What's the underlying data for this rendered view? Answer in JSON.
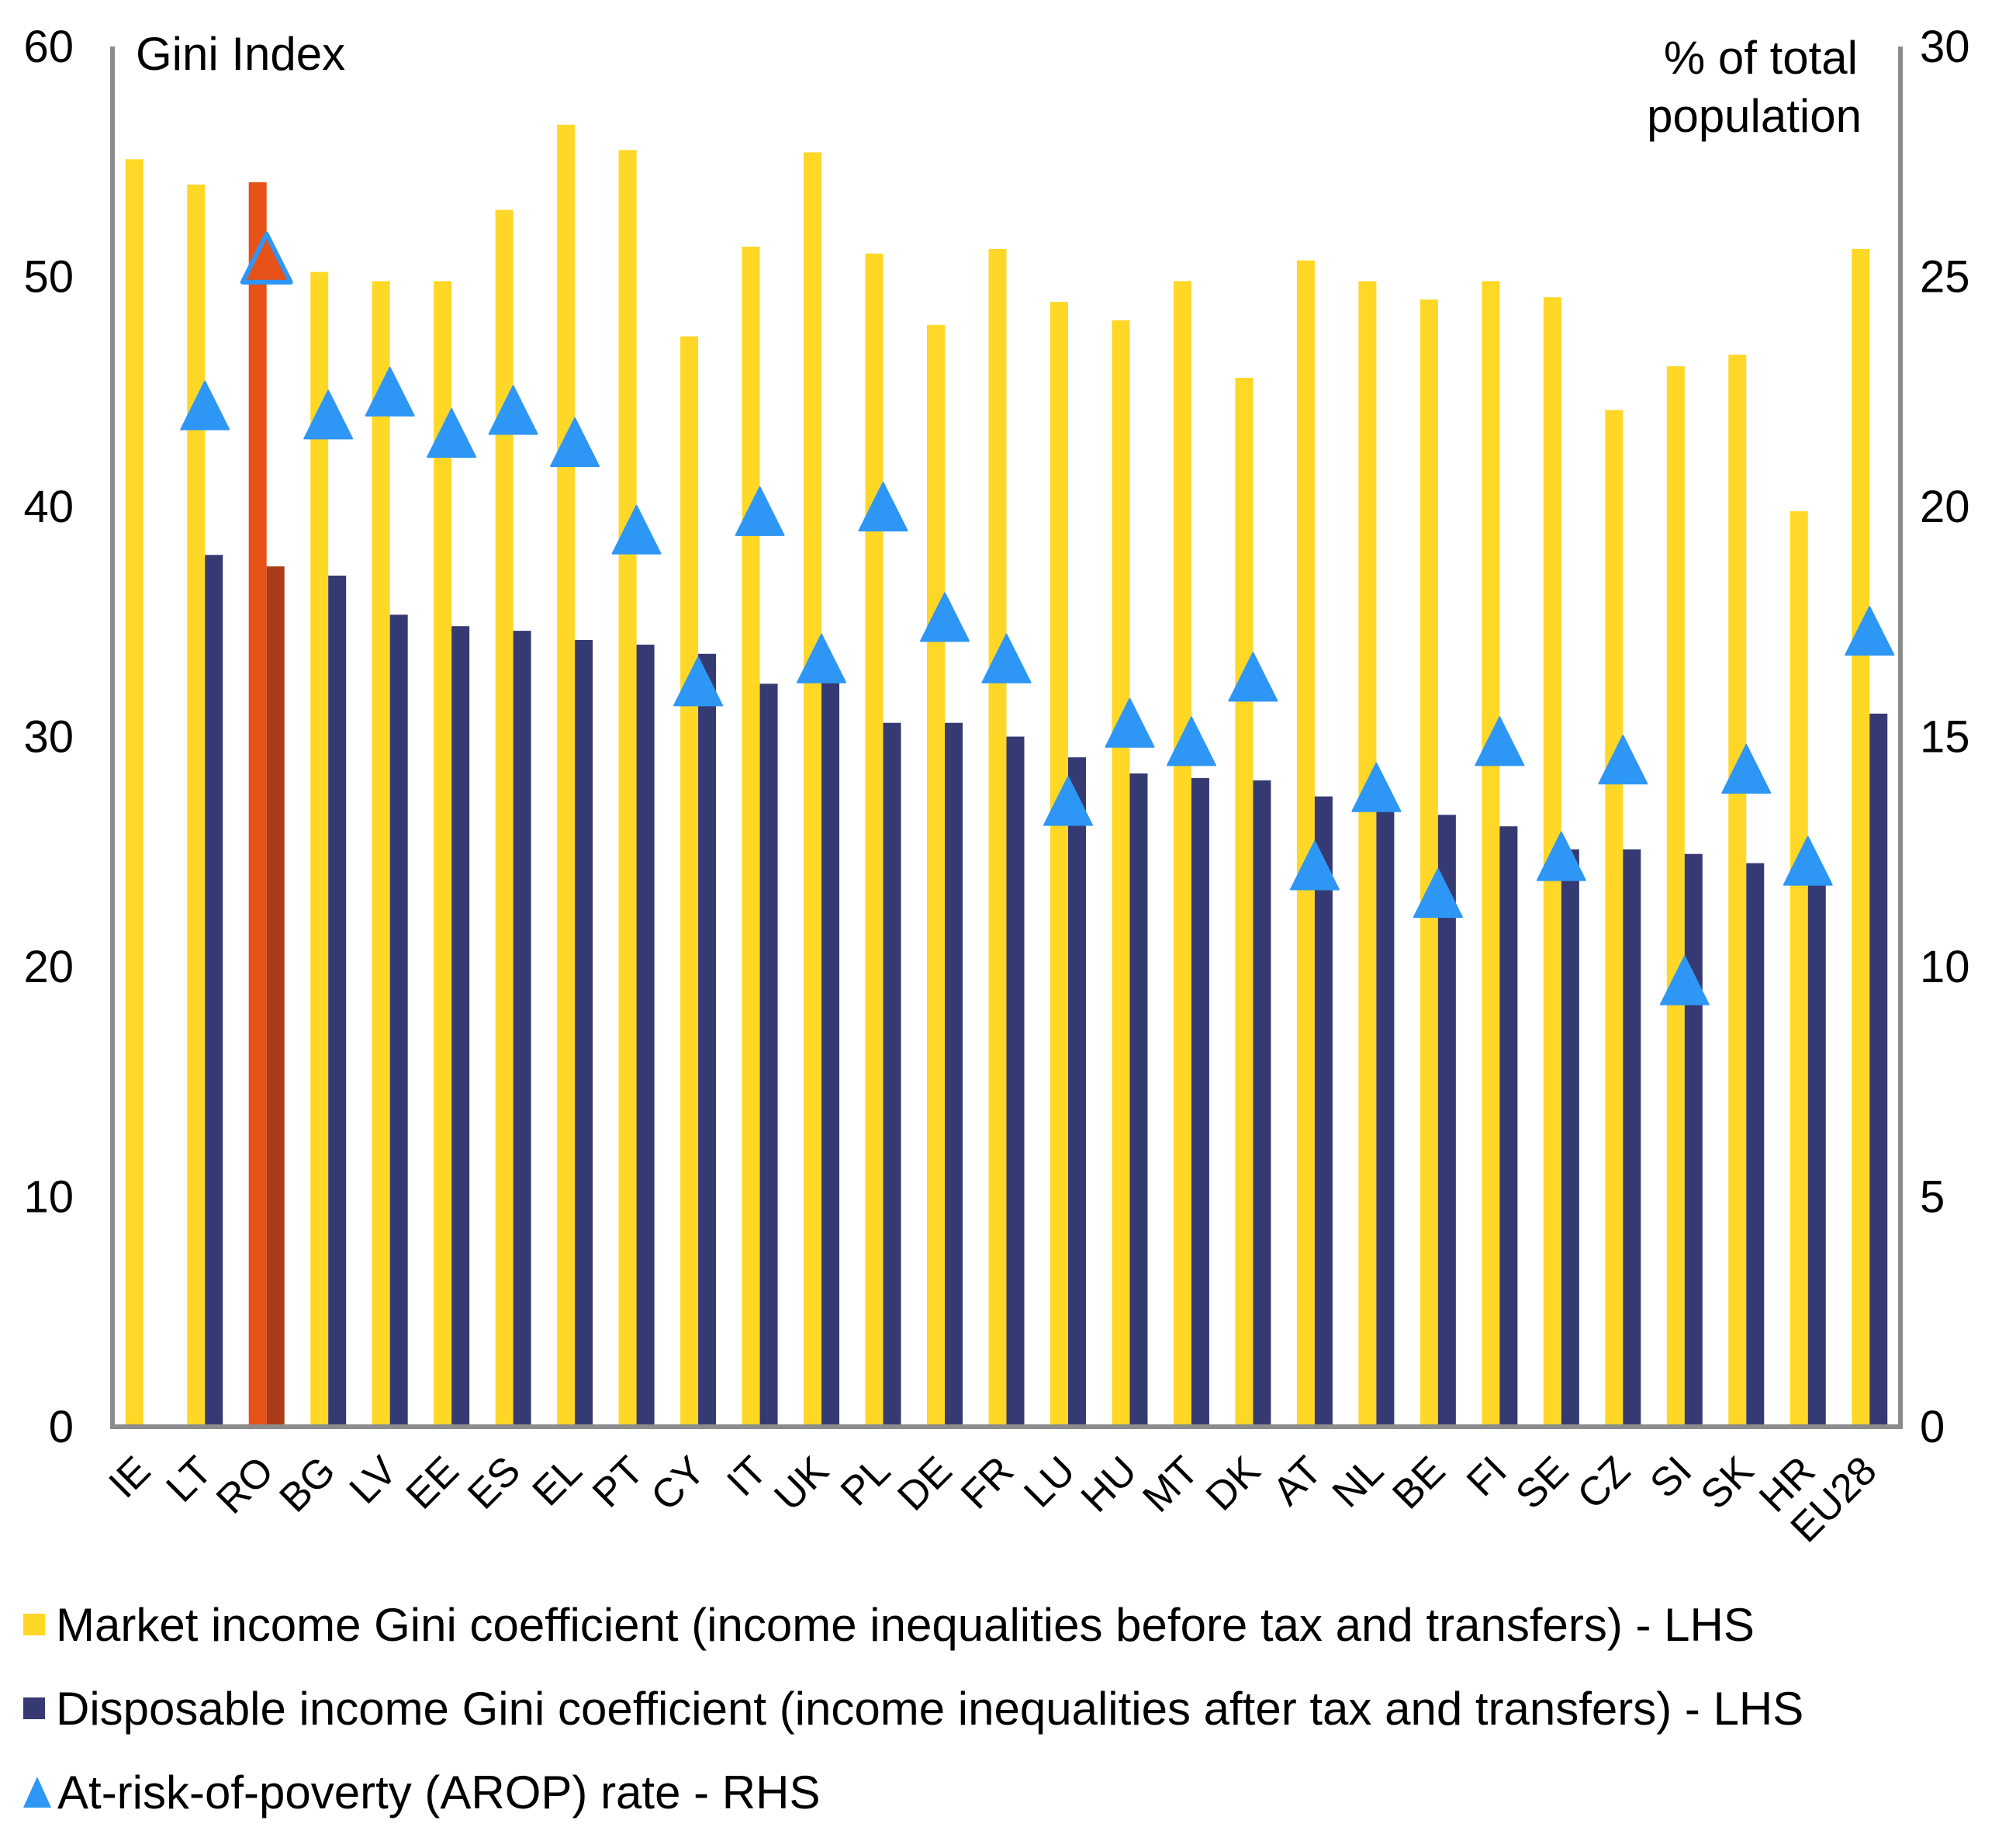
{
  "chart_data": {
    "type": "bar",
    "title": "",
    "left_axis_title": "Gini Index",
    "right_axis_title_lines": [
      "% of total",
      "population"
    ],
    "ylim_left": [
      0,
      60
    ],
    "ylim_right": [
      0,
      30
    ],
    "left_ticks": [
      0,
      10,
      20,
      30,
      40,
      50,
      60
    ],
    "right_ticks": [
      0,
      5,
      10,
      15,
      20,
      25,
      30
    ],
    "grid": false,
    "legend_position": "bottom",
    "highlighted_category": "RO",
    "categories": [
      "IE",
      "LT",
      "RO",
      "BG",
      "LV",
      "EE",
      "ES",
      "EL",
      "PT",
      "CY",
      "IT",
      "UK",
      "PL",
      "DE",
      "FR",
      "LU",
      "HU",
      "MT",
      "DK",
      "AT",
      "NL",
      "BE",
      "FI",
      "SE",
      "CZ",
      "SI",
      "SK",
      "HR",
      "EU28"
    ],
    "series": [
      {
        "name": "Market income Gini coefficient (income inequalities before tax and transfers) - LHS",
        "type": "bar",
        "axis": "left",
        "color": "#FFD726",
        "highlight_color": "#E65217",
        "values": [
          55.1,
          54.0,
          54.1,
          50.2,
          49.8,
          49.8,
          52.9,
          56.6,
          55.5,
          47.4,
          51.3,
          55.4,
          51.0,
          47.9,
          51.2,
          48.9,
          48.1,
          49.8,
          45.6,
          50.7,
          49.8,
          49.0,
          49.8,
          49.1,
          44.2,
          46.1,
          46.6,
          39.8,
          51.2
        ]
      },
      {
        "name": "Disposable income Gini coefficient (income inequalities after tax and transfers) - LHS",
        "type": "bar",
        "axis": "left",
        "color": "#363A72",
        "highlight_color": "#AC3C17",
        "values": [
          null,
          37.9,
          37.4,
          37.0,
          35.3,
          34.8,
          34.6,
          34.2,
          34.0,
          33.6,
          32.3,
          32.4,
          30.6,
          30.6,
          30.0,
          29.1,
          28.4,
          28.2,
          28.1,
          27.4,
          26.9,
          26.6,
          26.1,
          25.1,
          25.1,
          24.9,
          24.5,
          23.8,
          31.0
        ]
      },
      {
        "name": "At-risk-of-poverty (AROP) rate - RHS",
        "type": "marker-triangle",
        "axis": "right",
        "color": "#2E96F5",
        "highlight_color": "#E65217",
        "values": [
          null,
          22.2,
          25.4,
          22.0,
          22.5,
          21.6,
          22.1,
          21.4,
          19.5,
          16.2,
          19.9,
          16.7,
          20.0,
          17.6,
          16.7,
          13.6,
          15.3,
          14.9,
          16.3,
          12.2,
          13.9,
          11.6,
          14.9,
          12.4,
          14.5,
          9.7,
          14.3,
          12.3,
          17.3
        ]
      }
    ]
  }
}
